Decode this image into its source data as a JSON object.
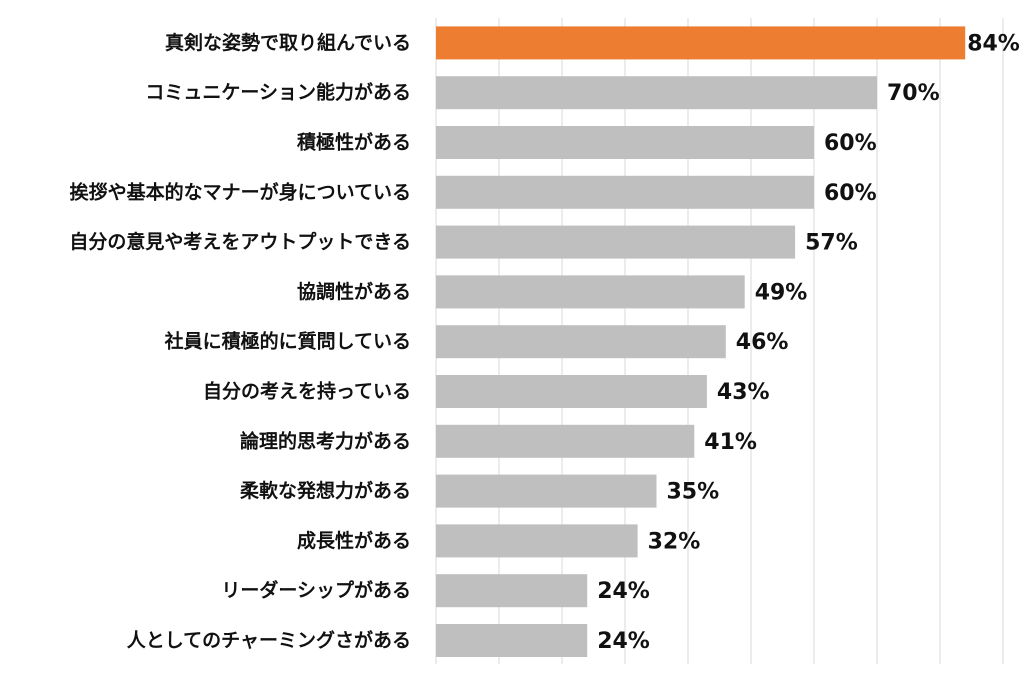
{
  "chart_data": {
    "type": "bar",
    "orientation": "horizontal",
    "categories": [
      "真剣な姿勢で取り組んでいる",
      "コミュニケーション能力がある",
      "積極性がある",
      "挨拶や基本的なマナーが身についている",
      "自分の意見や考えをアウトプットできる",
      "協調性がある",
      "社員に積極的に質問している",
      "自分の考えを持っている",
      "論理的思考力がある",
      "柔軟な発想力がある",
      "成長性がある",
      "リーダーシップがある",
      "人としてのチャーミングさがある"
    ],
    "values": [
      84,
      70,
      60,
      60,
      57,
      49,
      46,
      43,
      41,
      35,
      32,
      24,
      24
    ],
    "value_labels": [
      "84%",
      "70%",
      "60%",
      "60%",
      "57%",
      "49%",
      "46%",
      "43%",
      "41%",
      "35%",
      "32%",
      "24%",
      "24%"
    ],
    "unit": "%",
    "xlim": [
      0,
      90
    ],
    "grid": true,
    "legend": "none",
    "highlight_index": 0,
    "colors": {
      "highlight": "#ED7D31",
      "default": "#BFBFBF",
      "gridline": "#D9D9D9",
      "text": "#111111"
    }
  }
}
